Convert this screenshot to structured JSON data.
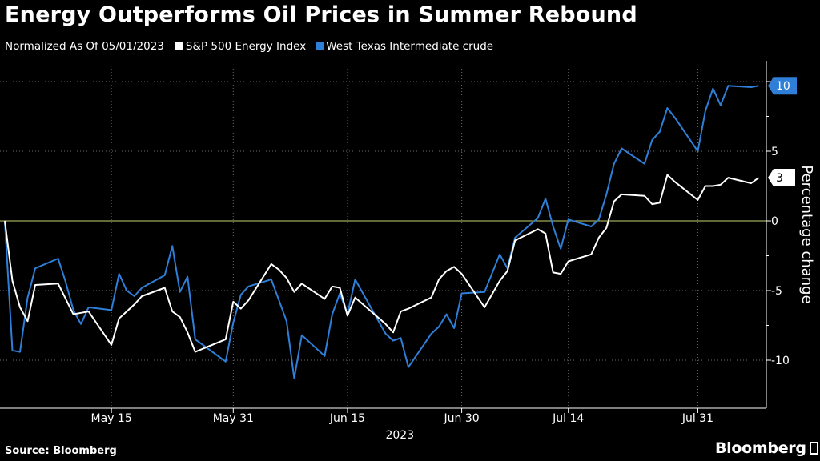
{
  "title": "Energy Outperforms Oil Prices in Summer Rebound",
  "subtitle": "Normalized As Of 05/01/2023",
  "source": "Source: Bloomberg",
  "brand": "Bloomberg",
  "colors": {
    "background": "#000000",
    "energy": "#ffffff",
    "wti": "#2f7fd8",
    "zero_line": "#c9d46a",
    "grid": "#6a6a6a"
  },
  "chart_data": {
    "type": "line",
    "title": "Energy Outperforms Oil Prices in Summer Rebound",
    "subtitle": "Normalized As Of 05/01/2023",
    "xlabel": "2023",
    "ylabel": "Percentage change",
    "ylim": [
      -13,
      12
    ],
    "yticks": [
      -10,
      -5,
      0,
      5,
      10
    ],
    "ytick_labels": [
      "-10",
      "-5",
      "0",
      "5",
      "10"
    ],
    "xlim": [
      "2023-05-01",
      "2023-08-09"
    ],
    "xticks": [
      "2023-05-15",
      "2023-05-31",
      "2023-06-15",
      "2023-06-30",
      "2023-07-14",
      "2023-07-31"
    ],
    "xtick_labels": [
      "May 15",
      "May 31",
      "Jun 15",
      "Jun 30",
      "Jul 14",
      "Jul 31"
    ],
    "x_year_label": "2023",
    "grid": "horizontal and vertical dotted",
    "legend": "top-left",
    "series": [
      {
        "name": "S&P 500 Energy Index",
        "color": "#ffffff",
        "end_label": "3",
        "x": [
          "2023-05-01",
          "2023-05-02",
          "2023-05-03",
          "2023-05-04",
          "2023-05-05",
          "2023-05-08",
          "2023-05-09",
          "2023-05-10",
          "2023-05-11",
          "2023-05-12",
          "2023-05-15",
          "2023-05-16",
          "2023-05-17",
          "2023-05-18",
          "2023-05-19",
          "2023-05-22",
          "2023-05-23",
          "2023-05-24",
          "2023-05-25",
          "2023-05-26",
          "2023-05-30",
          "2023-05-31",
          "2023-06-01",
          "2023-06-02",
          "2023-06-05",
          "2023-06-06",
          "2023-06-07",
          "2023-06-08",
          "2023-06-09",
          "2023-06-12",
          "2023-06-13",
          "2023-06-14",
          "2023-06-15",
          "2023-06-16",
          "2023-06-20",
          "2023-06-21",
          "2023-06-22",
          "2023-06-23",
          "2023-06-26",
          "2023-06-27",
          "2023-06-28",
          "2023-06-29",
          "2023-06-30",
          "2023-07-03",
          "2023-07-05",
          "2023-07-06",
          "2023-07-07",
          "2023-07-10",
          "2023-07-11",
          "2023-07-12",
          "2023-07-13",
          "2023-07-14",
          "2023-07-17",
          "2023-07-18",
          "2023-07-19",
          "2023-07-20",
          "2023-07-21",
          "2023-07-24",
          "2023-07-25",
          "2023-07-26",
          "2023-07-27",
          "2023-07-28",
          "2023-07-31",
          "2023-08-01",
          "2023-08-02",
          "2023-08-03",
          "2023-08-04",
          "2023-08-07",
          "2023-08-08"
        ],
        "values": [
          0,
          -4.3,
          -6.2,
          -7.2,
          -4.6,
          -4.5,
          -5.6,
          -6.7,
          -6.6,
          -6.5,
          -8.9,
          -7.0,
          -6.5,
          -6.0,
          -5.4,
          -4.8,
          -6.5,
          -6.9,
          -8.0,
          -9.4,
          -8.5,
          -5.8,
          -6.3,
          -5.7,
          -3.1,
          -3.5,
          -4.1,
          -5.1,
          -4.5,
          -5.6,
          -4.7,
          -4.8,
          -6.8,
          -5.5,
          -7.4,
          -8.0,
          -6.5,
          -6.3,
          -5.5,
          -4.2,
          -3.6,
          -3.3,
          -3.8,
          -6.2,
          -4.3,
          -3.6,
          -1.4,
          -0.6,
          -0.9,
          -3.7,
          -3.8,
          -2.9,
          -2.4,
          -1.2,
          -0.5,
          1.4,
          1.9,
          1.8,
          1.2,
          1.3,
          3.3,
          2.8,
          1.5,
          2.5,
          2.5,
          2.6,
          3.1,
          2.7,
          3.1
        ]
      },
      {
        "name": "West Texas Intermediate crude",
        "color": "#2f7fd8",
        "end_label": "10",
        "x": [
          "2023-05-01",
          "2023-05-02",
          "2023-05-03",
          "2023-05-04",
          "2023-05-05",
          "2023-05-08",
          "2023-05-09",
          "2023-05-10",
          "2023-05-11",
          "2023-05-12",
          "2023-05-15",
          "2023-05-16",
          "2023-05-17",
          "2023-05-18",
          "2023-05-19",
          "2023-05-22",
          "2023-05-23",
          "2023-05-24",
          "2023-05-25",
          "2023-05-26",
          "2023-05-30",
          "2023-05-31",
          "2023-06-01",
          "2023-06-02",
          "2023-06-05",
          "2023-06-06",
          "2023-06-07",
          "2023-06-08",
          "2023-06-09",
          "2023-06-12",
          "2023-06-13",
          "2023-06-14",
          "2023-06-15",
          "2023-06-16",
          "2023-06-20",
          "2023-06-21",
          "2023-06-22",
          "2023-06-23",
          "2023-06-26",
          "2023-06-27",
          "2023-06-28",
          "2023-06-29",
          "2023-06-30",
          "2023-07-03",
          "2023-07-05",
          "2023-07-06",
          "2023-07-07",
          "2023-07-10",
          "2023-07-11",
          "2023-07-12",
          "2023-07-13",
          "2023-07-14",
          "2023-07-17",
          "2023-07-18",
          "2023-07-19",
          "2023-07-20",
          "2023-07-21",
          "2023-07-24",
          "2023-07-25",
          "2023-07-26",
          "2023-07-27",
          "2023-07-28",
          "2023-07-31",
          "2023-08-01",
          "2023-08-02",
          "2023-08-03",
          "2023-08-04",
          "2023-08-07",
          "2023-08-08"
        ],
        "values": [
          0,
          -9.3,
          -9.4,
          -5.5,
          -3.4,
          -2.7,
          -4.4,
          -6.4,
          -7.4,
          -6.2,
          -6.4,
          -3.8,
          -5.0,
          -5.4,
          -4.8,
          -3.9,
          -1.8,
          -5.1,
          -4.0,
          -8.5,
          -10.1,
          -7.3,
          -5.3,
          -4.7,
          -4.2,
          -5.7,
          -7.2,
          -11.3,
          -8.2,
          -9.7,
          -6.7,
          -5.2,
          -6.7,
          -4.2,
          -8.1,
          -8.6,
          -8.4,
          -10.5,
          -8.1,
          -7.6,
          -6.7,
          -7.7,
          -5.2,
          -5.1,
          -2.4,
          -3.4,
          -1.2,
          0.2,
          1.6,
          -0.4,
          -2.0,
          0.1,
          -0.4,
          0.1,
          1.9,
          4.1,
          5.2,
          4.1,
          5.8,
          6.4,
          8.1,
          7.4,
          5.0,
          7.9,
          9.5,
          8.3,
          9.7,
          9.6,
          9.7
        ]
      }
    ]
  }
}
